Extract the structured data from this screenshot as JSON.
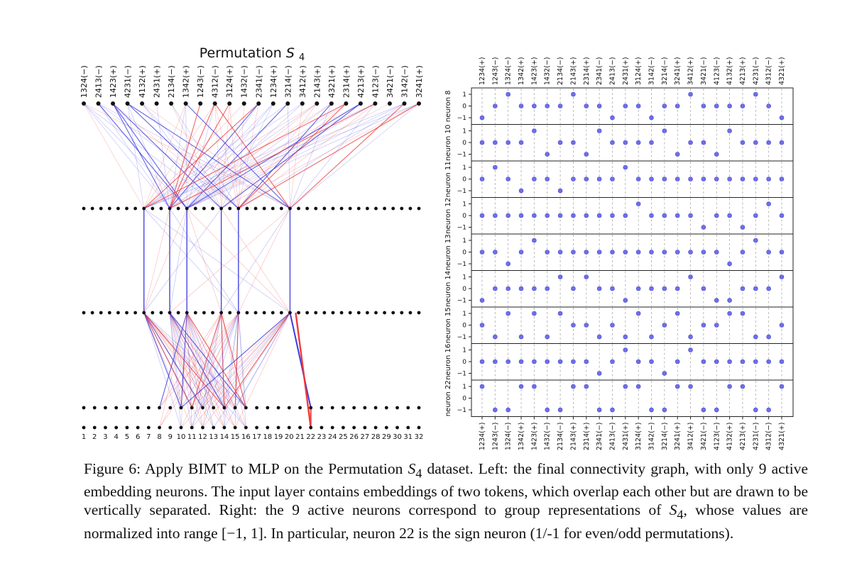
{
  "left_panel": {
    "title": "Permutation",
    "title_math": "S",
    "title_sub": "4",
    "top_labels": [
      "1324(−)",
      "2413(−)",
      "1423(+)",
      "4231(−)",
      "4132(+)",
      "2431(+)",
      "2134(−)",
      "1342(+)",
      "1243(−)",
      "4312(−)",
      "3124(+)",
      "1432(−)",
      "2341(−)",
      "1234(+)",
      "3214(−)",
      "3412(+)",
      "2143(+)",
      "4321(+)",
      "2314(+)",
      "4213(+)",
      "4123(−)",
      "3421(−)",
      "3142(−)",
      "3241(+)"
    ],
    "bottom_labels": [
      "1",
      "2",
      "3",
      "4",
      "5",
      "6",
      "7",
      "8",
      "9",
      "10",
      "11",
      "12",
      "13",
      "14",
      "15",
      "16",
      "17",
      "18",
      "19",
      "20",
      "21",
      "22",
      "23",
      "24",
      "25",
      "26",
      "27",
      "28",
      "29",
      "30",
      "31",
      "32"
    ],
    "layer_sizes": [
      24,
      40,
      40,
      32,
      32
    ],
    "active_l1": [
      7,
      10,
      12,
      16,
      18,
      24
    ],
    "active_l2": [
      7,
      10,
      12,
      16,
      18,
      24
    ],
    "active_emb": [
      7,
      9,
      10,
      11,
      12,
      13,
      14,
      15,
      21
    ],
    "red_highlight": 21
  },
  "right_panel": {
    "perm_labels": [
      "1234(+)",
      "1243(−)",
      "1324(−)",
      "1342(+)",
      "1423(+)",
      "1432(−)",
      "2134(−)",
      "2143(+)",
      "2314(+)",
      "2341(−)",
      "2413(−)",
      "2431(+)",
      "3124(+)",
      "3142(−)",
      "3214(−)",
      "3241(+)",
      "3412(+)",
      "3421(−)",
      "4123(−)",
      "4132(+)",
      "4213(+)",
      "4231(−)",
      "4312(−)",
      "4321(+)"
    ],
    "y_ticks": [
      "1",
      "0",
      "−1"
    ],
    "neurons": [
      {
        "name": "neuron 8",
        "values": [
          -1,
          0,
          1,
          0,
          0,
          0,
          0,
          1,
          0,
          0,
          -1,
          0,
          0,
          -1,
          0,
          0,
          1,
          0,
          0,
          0,
          0,
          1,
          0,
          -1
        ]
      },
      {
        "name": "neuron 10",
        "values": [
          0,
          0,
          0,
          0,
          1,
          -1,
          0,
          0,
          -1,
          1,
          0,
          0,
          0,
          0,
          1,
          -1,
          0,
          0,
          -1,
          1,
          0,
          0,
          0,
          0
        ]
      },
      {
        "name": "neuron 11",
        "values": [
          0,
          1,
          0,
          -1,
          0,
          0,
          -1,
          0,
          0,
          0,
          0,
          1,
          0,
          0,
          0,
          0,
          0,
          0,
          0,
          0,
          0,
          0,
          0,
          0
        ]
      },
      {
        "name": "neuron 12",
        "values": [
          0,
          0,
          0,
          0,
          0,
          0,
          0,
          0,
          0,
          0,
          0,
          0,
          1,
          0,
          0,
          0,
          0,
          -1,
          0,
          0,
          -1,
          0,
          1,
          0
        ]
      },
      {
        "name": "neuron 13",
        "values": [
          0,
          0,
          -1,
          0,
          1,
          0,
          0,
          0,
          0,
          0,
          0,
          0,
          0,
          0,
          0,
          0,
          0,
          0,
          0,
          -1,
          0,
          1,
          0,
          0
        ]
      },
      {
        "name": "neuron 14",
        "values": [
          -1,
          0,
          0,
          0,
          0,
          0,
          1,
          0,
          1,
          0,
          0,
          -1,
          0,
          0,
          0,
          0,
          1,
          0,
          -1,
          -1,
          0,
          0,
          0,
          1
        ]
      },
      {
        "name": "neuron 15",
        "values": [
          0,
          -1,
          1,
          -1,
          1,
          -1,
          1,
          0,
          0,
          -1,
          0,
          -1,
          1,
          -1,
          0,
          1,
          -1,
          0,
          0,
          1,
          1,
          -1,
          -1,
          0
        ]
      },
      {
        "name": "neuron 16",
        "values": [
          0,
          0,
          0,
          0,
          0,
          0,
          0,
          0,
          0,
          -1,
          0,
          1,
          0,
          0,
          -1,
          0,
          1,
          0,
          0,
          0,
          0,
          0,
          0,
          0
        ]
      },
      {
        "name": "neuron 22",
        "values": [
          1,
          -1,
          -1,
          1,
          1,
          -1,
          -1,
          1,
          1,
          -1,
          -1,
          1,
          1,
          -1,
          -1,
          1,
          1,
          -1,
          -1,
          1,
          1,
          -1,
          -1,
          1
        ]
      }
    ]
  },
  "caption": {
    "p1": "Figure 6: Apply BIMT to MLP on the Permutation ",
    "m1": "S",
    "s1": "4",
    "p2": " dataset. Left: the final connectivity graph, with only 9 active embedding neurons. The input layer contains embeddings of two tokens, which overlap each other but are drawn to be vertically separated. Right: the 9 active neurons correspond to group representations of ",
    "m2": "S",
    "s2": "4",
    "p3": ", whose values are normalized into range ",
    "range": "[−1, 1]",
    "p4": ". In particular, neuron 22 is the sign neuron (1/-1 for even/odd permutations)."
  },
  "colors": {
    "node": "#111111",
    "positive_edge": "#3333dd",
    "negative_edge": "#ee3333",
    "point": "#6f6fe8",
    "point_edge": "#4a4ad0"
  }
}
